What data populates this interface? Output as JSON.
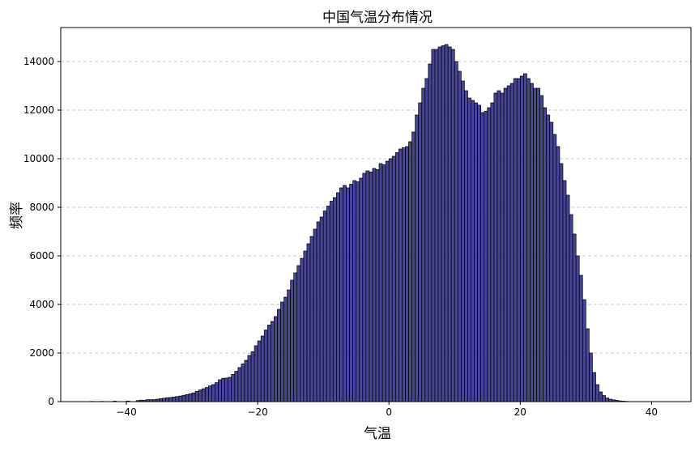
{
  "chart_data": {
    "type": "bar",
    "title": "中国气温分布情况",
    "xlabel": "气温",
    "ylabel": "频率",
    "xlim": [
      -50,
      46
    ],
    "ylim": [
      0,
      15400
    ],
    "xticks": [
      -40,
      -20,
      0,
      20,
      40
    ],
    "yticks": [
      0,
      2000,
      4000,
      6000,
      8000,
      10000,
      12000,
      14000
    ],
    "grid": {
      "y": true,
      "x": false,
      "style": "dashed"
    },
    "bar_color": "#2b2b85",
    "bar_edge_color": "#000000",
    "grid_color": "#c8c8c8",
    "bin_width": 0.5,
    "bins": [
      [
        -45.5,
        10
      ],
      [
        -44,
        10
      ],
      [
        -42,
        20
      ],
      [
        -40,
        25
      ],
      [
        -38.5,
        40
      ],
      [
        -38,
        60
      ],
      [
        -37.5,
        60
      ],
      [
        -37,
        80
      ],
      [
        -36.5,
        80
      ],
      [
        -36,
        80
      ],
      [
        -35.5,
        100
      ],
      [
        -35,
        120
      ],
      [
        -34.5,
        140
      ],
      [
        -34,
        160
      ],
      [
        -33.5,
        170
      ],
      [
        -33,
        190
      ],
      [
        -32.5,
        210
      ],
      [
        -32,
        230
      ],
      [
        -31.5,
        260
      ],
      [
        -31,
        290
      ],
      [
        -30.5,
        320
      ],
      [
        -30,
        360
      ],
      [
        -29.5,
        420
      ],
      [
        -29,
        480
      ],
      [
        -28.5,
        530
      ],
      [
        -28,
        580
      ],
      [
        -27.5,
        650
      ],
      [
        -27,
        700
      ],
      [
        -26.5,
        780
      ],
      [
        -26,
        900
      ],
      [
        -25.5,
        960
      ],
      [
        -25,
        970
      ],
      [
        -24.5,
        1000
      ],
      [
        -24,
        1120
      ],
      [
        -23.5,
        1250
      ],
      [
        -23,
        1400
      ],
      [
        -22.5,
        1550
      ],
      [
        -22,
        1700
      ],
      [
        -21.5,
        1900
      ],
      [
        -21,
        2050
      ],
      [
        -20.5,
        2300
      ],
      [
        -20,
        2500
      ],
      [
        -19.5,
        2700
      ],
      [
        -19,
        2950
      ],
      [
        -18.5,
        3150
      ],
      [
        -18,
        3300
      ],
      [
        -17.5,
        3500
      ],
      [
        -17,
        3800
      ],
      [
        -16.5,
        4100
      ],
      [
        -16,
        4300
      ],
      [
        -15.5,
        4600
      ],
      [
        -15,
        5000
      ],
      [
        -14.5,
        5300
      ],
      [
        -14,
        5600
      ],
      [
        -13.5,
        5900
      ],
      [
        -13,
        6200
      ],
      [
        -12.5,
        6500
      ],
      [
        -12,
        6800
      ],
      [
        -11.5,
        7100
      ],
      [
        -11,
        7400
      ],
      [
        -10.5,
        7600
      ],
      [
        -10,
        7850
      ],
      [
        -9.5,
        8050
      ],
      [
        -9,
        8250
      ],
      [
        -8.5,
        8400
      ],
      [
        -8,
        8600
      ],
      [
        -7.5,
        8800
      ],
      [
        -7,
        8900
      ],
      [
        -6.5,
        8800
      ],
      [
        -6,
        8950
      ],
      [
        -5.5,
        9100
      ],
      [
        -5,
        9050
      ],
      [
        -4.5,
        9200
      ],
      [
        -4,
        9400
      ],
      [
        -3.5,
        9500
      ],
      [
        -3,
        9450
      ],
      [
        -2.5,
        9600
      ],
      [
        -2,
        9550
      ],
      [
        -1.5,
        9800
      ],
      [
        -1,
        9750
      ],
      [
        -0.5,
        9900
      ],
      [
        0,
        10000
      ],
      [
        0.5,
        10100
      ],
      [
        1,
        10250
      ],
      [
        1.5,
        10400
      ],
      [
        2,
        10450
      ],
      [
        2.5,
        10500
      ],
      [
        3,
        10700
      ],
      [
        3.5,
        11100
      ],
      [
        4,
        11800
      ],
      [
        4.5,
        12300
      ],
      [
        5,
        12900
      ],
      [
        5.5,
        13300
      ],
      [
        6,
        13900
      ],
      [
        6.5,
        14500
      ],
      [
        7,
        14500
      ],
      [
        7.5,
        14600
      ],
      [
        8,
        14650
      ],
      [
        8.5,
        14700
      ],
      [
        9,
        14600
      ],
      [
        9.5,
        14500
      ],
      [
        10,
        14000
      ],
      [
        10.5,
        13600
      ],
      [
        11,
        13200
      ],
      [
        11.5,
        12800
      ],
      [
        12,
        12500
      ],
      [
        12.5,
        12400
      ],
      [
        13,
        12300
      ],
      [
        13.5,
        12200
      ],
      [
        14,
        11900
      ],
      [
        14.5,
        11950
      ],
      [
        15,
        12100
      ],
      [
        15.5,
        12300
      ],
      [
        16,
        12700
      ],
      [
        16.5,
        12800
      ],
      [
        17,
        12700
      ],
      [
        17.5,
        12900
      ],
      [
        18,
        13000
      ],
      [
        18.5,
        13100
      ],
      [
        19,
        13300
      ],
      [
        19.5,
        13300
      ],
      [
        20,
        13400
      ],
      [
        20.5,
        13500
      ],
      [
        21,
        13300
      ],
      [
        21.5,
        13100
      ],
      [
        22,
        12900
      ],
      [
        22.5,
        12900
      ],
      [
        23,
        12600
      ],
      [
        23.5,
        12100
      ],
      [
        24,
        11800
      ],
      [
        24.5,
        11500
      ],
      [
        25,
        11000
      ],
      [
        25.5,
        10500
      ],
      [
        26,
        9800
      ],
      [
        26.5,
        9100
      ],
      [
        27,
        8500
      ],
      [
        27.5,
        7700
      ],
      [
        28,
        6900
      ],
      [
        28.5,
        6000
      ],
      [
        29,
        5200
      ],
      [
        29.5,
        4200
      ],
      [
        30,
        3000
      ],
      [
        30.5,
        2000
      ],
      [
        31,
        1200
      ],
      [
        31.5,
        700
      ],
      [
        32,
        400
      ],
      [
        32.5,
        250
      ],
      [
        33,
        150
      ],
      [
        33.5,
        100
      ],
      [
        34,
        70
      ],
      [
        34.5,
        50
      ],
      [
        35,
        30
      ],
      [
        35.5,
        20
      ],
      [
        36,
        10
      ],
      [
        37,
        5
      ],
      [
        40,
        5
      ],
      [
        42,
        5
      ]
    ]
  }
}
